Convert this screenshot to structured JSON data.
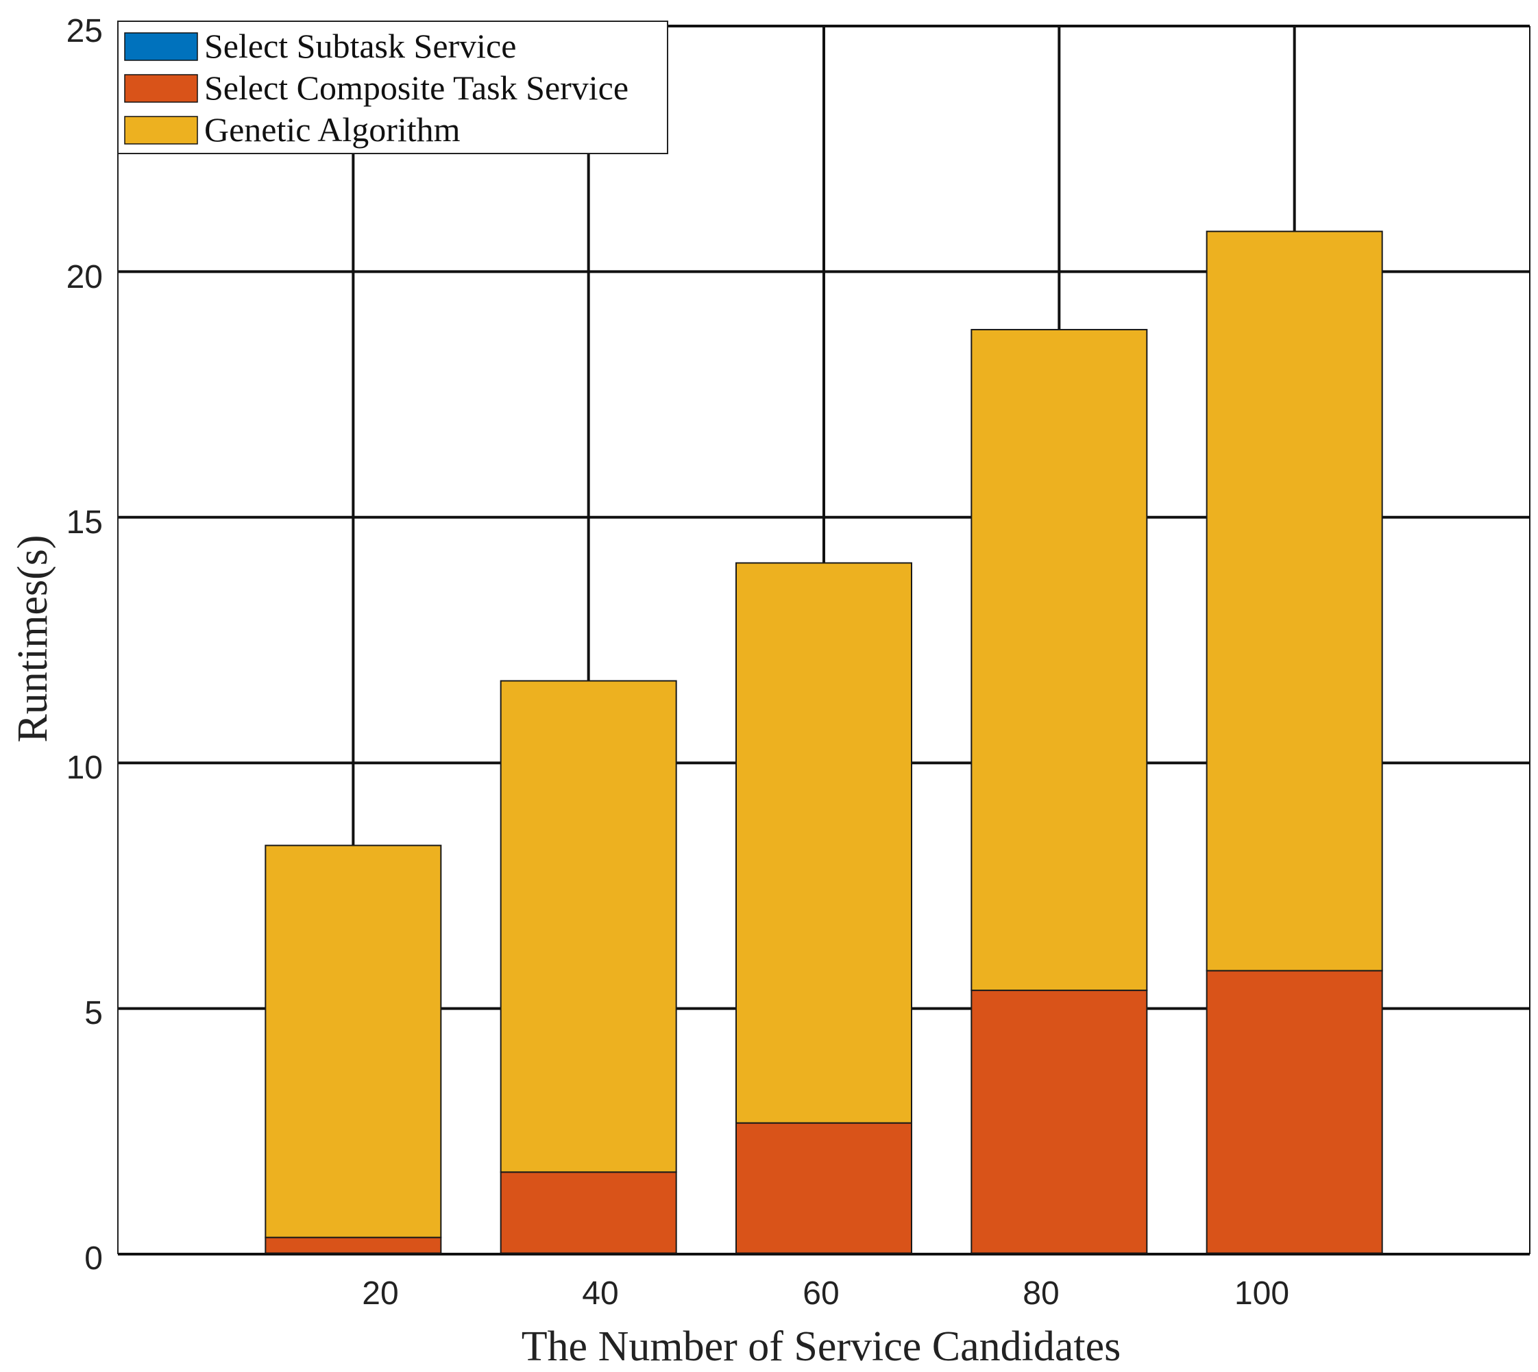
{
  "chart_data": {
    "type": "bar",
    "stacked": true,
    "categories": [
      "20",
      "40",
      "60",
      "80",
      "100"
    ],
    "series": [
      {
        "name": "Select Subtask Service",
        "color": "#0072BD",
        "values": [
          0.02,
          0.02,
          0.02,
          0.02,
          0.02
        ]
      },
      {
        "name": "Select Composite Task Service",
        "color": "#D95319",
        "values": [
          0.32,
          1.65,
          2.65,
          5.35,
          5.75
        ]
      },
      {
        "name": "Genetic Algorithm",
        "color": "#EDB120",
        "values": [
          7.98,
          10.0,
          11.4,
          13.45,
          15.05
        ]
      }
    ],
    "xlabel": "The Number of Service Candidates",
    "ylabel": "Runtimes(s)",
    "ylim": [
      0,
      25
    ],
    "yticks": [
      "0",
      "5",
      "10",
      "15",
      "20",
      "25"
    ],
    "xlim": [
      0,
      120
    ],
    "grid": true,
    "legend_position": "top-left"
  }
}
